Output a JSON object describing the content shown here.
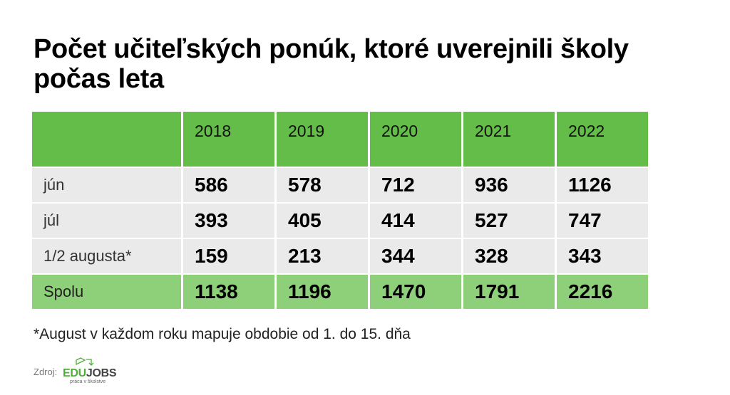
{
  "title": "Počet učiteľských ponúk, ktoré uverejnili školy počas leta",
  "colors": {
    "header_green": "#64bd48",
    "total_green": "#8ed07a",
    "row_gray": "#eaeaea"
  },
  "chart_data": {
    "type": "table",
    "title": "Počet učiteľských ponúk, ktoré uverejnili školy počas leta",
    "columns": [
      "",
      "2018",
      "2019",
      "2020",
      "2021",
      "2022"
    ],
    "rows": [
      {
        "label": "jún",
        "values": [
          "586",
          "578",
          "712",
          "936",
          "1126"
        ]
      },
      {
        "label": "júl",
        "values": [
          "393",
          "405",
          "414",
          "527",
          "747"
        ]
      },
      {
        "label": "1/2 augusta*",
        "values": [
          "159",
          "213",
          "344",
          "328",
          "343"
        ]
      },
      {
        "label": "Spolu",
        "values": [
          "1138",
          "1196",
          "1470",
          "1791",
          "2216"
        ]
      }
    ]
  },
  "footnote": "*August v každom roku mapuje obdobie od 1. do 15. dňa",
  "source": {
    "label": "Zdroj:",
    "logo_edu": "EDU",
    "logo_jobs": "JOBS",
    "logo_tagline": "práca v školstve",
    "logo_icon": "graduation-cap-icon"
  }
}
